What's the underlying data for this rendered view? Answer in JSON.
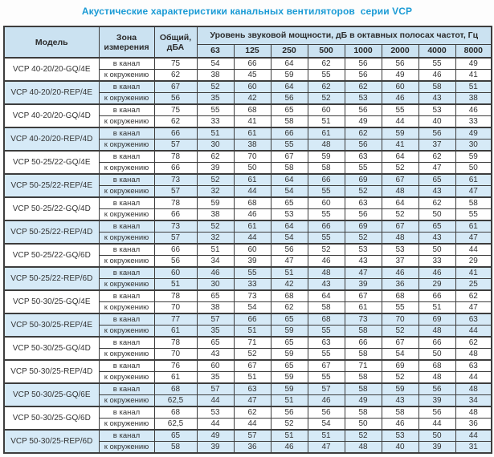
{
  "title": "Акустические характеристики канальных вентиляторов  серии VCP",
  "colors": {
    "title_text": "#1b9bd5",
    "header_bg": "#cbe2f1",
    "shaded_row_bg": "#d6eaf7",
    "border": "#3d3d3d",
    "cell_text": "#333333"
  },
  "table": {
    "headers": {
      "model": "Модель",
      "zone": "Зона измерения",
      "total": "Общий, дБА",
      "spl_group": "Уровень звуковой мощности, дБ в октавных полосах частот, Гц",
      "frequencies": [
        "63",
        "125",
        "250",
        "500",
        "1000",
        "2000",
        "4000",
        "8000"
      ]
    },
    "zone_labels": [
      "в канал",
      "к окружению"
    ],
    "models": [
      {
        "name": "VCP 40-20/20-GQ/4E",
        "shaded": false,
        "rows": [
          {
            "zone": "в канал",
            "total": "75",
            "values": [
              "54",
              "66",
              "64",
              "62",
              "56",
              "56",
              "55",
              "49"
            ]
          },
          {
            "zone": "к окружению",
            "total": "62",
            "values": [
              "38",
              "45",
              "59",
              "55",
              "56",
              "49",
              "46",
              "41"
            ]
          }
        ]
      },
      {
        "name": "VCP 40-20/20-REP/4E",
        "shaded": true,
        "rows": [
          {
            "zone": "в канал",
            "total": "67",
            "values": [
              "52",
              "60",
              "64",
              "62",
              "62",
              "60",
              "58",
              "51"
            ]
          },
          {
            "zone": "к окружению",
            "total": "56",
            "values": [
              "35",
              "42",
              "56",
              "52",
              "53",
              "46",
              "43",
              "38"
            ]
          }
        ]
      },
      {
        "name": "VCP 40-20/20-GQ/4D",
        "shaded": false,
        "rows": [
          {
            "zone": "в канал",
            "total": "75",
            "values": [
              "55",
              "68",
              "65",
              "60",
              "56",
              "55",
              "53",
              "46"
            ]
          },
          {
            "zone": "к окружению",
            "total": "62",
            "values": [
              "33",
              "41",
              "58",
              "51",
              "49",
              "44",
              "40",
              "33"
            ]
          }
        ]
      },
      {
        "name": "VCP 40-20/20-REP/4D",
        "shaded": true,
        "rows": [
          {
            "zone": "в канал",
            "total": "66",
            "values": [
              "51",
              "61",
              "66",
              "61",
              "62",
              "59",
              "56",
              "49"
            ]
          },
          {
            "zone": "к окружению",
            "total": "57",
            "values": [
              "30",
              "38",
              "55",
              "48",
              "56",
              "41",
              "37",
              "30"
            ]
          }
        ]
      },
      {
        "name": "VCP 50-25/22-GQ/4E",
        "shaded": false,
        "rows": [
          {
            "zone": "в канал",
            "total": "78",
            "values": [
              "62",
              "70",
              "67",
              "59",
              "63",
              "64",
              "62",
              "59"
            ]
          },
          {
            "zone": "к окружению",
            "total": "66",
            "values": [
              "39",
              "50",
              "58",
              "58",
              "55",
              "52",
              "47",
              "50"
            ]
          }
        ]
      },
      {
        "name": "VCP 50-25/22-REP/4E",
        "shaded": true,
        "rows": [
          {
            "zone": "в канал",
            "total": "73",
            "values": [
              "52",
              "61",
              "64",
              "66",
              "69",
              "67",
              "65",
              "61"
            ]
          },
          {
            "zone": "к окружению",
            "total": "57",
            "values": [
              "32",
              "44",
              "54",
              "55",
              "52",
              "48",
              "43",
              "47"
            ]
          }
        ]
      },
      {
        "name": "VCP 50-25/22-GQ/4D",
        "shaded": false,
        "rows": [
          {
            "zone": "в канал",
            "total": "78",
            "values": [
              "59",
              "68",
              "65",
              "60",
              "63",
              "64",
              "62",
              "58"
            ]
          },
          {
            "zone": "к окружению",
            "total": "66",
            "values": [
              "38",
              "46",
              "53",
              "55",
              "56",
              "52",
              "50",
              "55"
            ]
          }
        ]
      },
      {
        "name": "VCP 50-25/22-REP/4D",
        "shaded": true,
        "rows": [
          {
            "zone": "в канал",
            "total": "73",
            "values": [
              "52",
              "61",
              "64",
              "66",
              "69",
              "67",
              "65",
              "61"
            ]
          },
          {
            "zone": "к окружению",
            "total": "57",
            "values": [
              "32",
              "44",
              "54",
              "55",
              "52",
              "48",
              "43",
              "47"
            ]
          }
        ]
      },
      {
        "name": "VCP 50-25/22-GQ/6D",
        "shaded": false,
        "rows": [
          {
            "zone": "в канал",
            "total": "66",
            "values": [
              "51",
              "60",
              "56",
              "52",
              "53",
              "53",
              "50",
              "44"
            ]
          },
          {
            "zone": "к окружению",
            "total": "56",
            "values": [
              "34",
              "39",
              "47",
              "46",
              "43",
              "37",
              "33",
              "29"
            ]
          }
        ]
      },
      {
        "name": "VCP 50-25/22-REP/6D",
        "shaded": true,
        "rows": [
          {
            "zone": "в канал",
            "total": "60",
            "values": [
              "46",
              "55",
              "51",
              "48",
              "47",
              "46",
              "46",
              "41"
            ]
          },
          {
            "zone": "к окружению",
            "total": "51",
            "values": [
              "30",
              "33",
              "42",
              "43",
              "39",
              "36",
              "29",
              "25"
            ]
          }
        ]
      },
      {
        "name": "VCP 50-30/25-GQ/4E",
        "shaded": false,
        "rows": [
          {
            "zone": "в канал",
            "total": "78",
            "values": [
              "65",
              "73",
              "68",
              "64",
              "67",
              "68",
              "66",
              "62"
            ]
          },
          {
            "zone": "к окружению",
            "total": "70",
            "values": [
              "38",
              "54",
              "62",
              "58",
              "61",
              "55",
              "51",
              "47"
            ]
          }
        ]
      },
      {
        "name": "VCP 50-30/25-REP/4E",
        "shaded": true,
        "rows": [
          {
            "zone": "в канал",
            "total": "77",
            "values": [
              "57",
              "66",
              "65",
              "68",
              "73",
              "70",
              "69",
              "63"
            ]
          },
          {
            "zone": "к окружению",
            "total": "61",
            "values": [
              "35",
              "51",
              "59",
              "55",
              "58",
              "52",
              "48",
              "44"
            ]
          }
        ]
      },
      {
        "name": "VCP 50-30/25-GQ/4D",
        "shaded": false,
        "rows": [
          {
            "zone": "в канал",
            "total": "78",
            "values": [
              "65",
              "71",
              "65",
              "63",
              "66",
              "67",
              "66",
              "62"
            ]
          },
          {
            "zone": "к окружению",
            "total": "70",
            "values": [
              "43",
              "52",
              "59",
              "55",
              "58",
              "54",
              "50",
              "48"
            ]
          }
        ]
      },
      {
        "name": "VCP 50-30/25-REP/4D",
        "shaded": false,
        "rows": [
          {
            "zone": "в канал",
            "total": "76",
            "values": [
              "60",
              "67",
              "65",
              "67",
              "71",
              "69",
              "68",
              "63"
            ]
          },
          {
            "zone": "к окружению",
            "total": "61",
            "values": [
              "35",
              "51",
              "59",
              "55",
              "58",
              "52",
              "48",
              "44"
            ]
          }
        ]
      },
      {
        "name": "VCP 50-30/25-GQ/6E",
        "shaded": true,
        "rows": [
          {
            "zone": "в канал",
            "total": "68",
            "values": [
              "57",
              "63",
              "59",
              "57",
              "58",
              "59",
              "56",
              "48"
            ]
          },
          {
            "zone": "к окружению",
            "total": "62,5",
            "values": [
              "44",
              "47",
              "51",
              "46",
              "49",
              "43",
              "39",
              "34"
            ]
          }
        ]
      },
      {
        "name": "VCP 50-30/25-GQ/6D",
        "shaded": false,
        "rows": [
          {
            "zone": "в канал",
            "total": "68",
            "values": [
              "53",
              "62",
              "56",
              "56",
              "58",
              "58",
              "56",
              "48"
            ]
          },
          {
            "zone": "к окружению",
            "total": "62,5",
            "values": [
              "44",
              "44",
              "52",
              "54",
              "50",
              "46",
              "44",
              "36"
            ]
          }
        ]
      },
      {
        "name": "VCP 50-30/25-REP/6D",
        "shaded": true,
        "rows": [
          {
            "zone": "в канал",
            "total": "65",
            "values": [
              "49",
              "57",
              "51",
              "51",
              "52",
              "53",
              "50",
              "44"
            ]
          },
          {
            "zone": "к окружению",
            "total": "58",
            "values": [
              "39",
              "36",
              "46",
              "47",
              "48",
              "40",
              "39",
              "31"
            ]
          }
        ]
      }
    ]
  }
}
